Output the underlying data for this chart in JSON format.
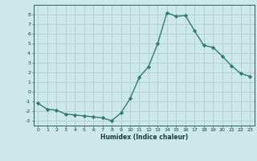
{
  "x": [
    0,
    1,
    2,
    3,
    4,
    5,
    6,
    7,
    8,
    9,
    10,
    11,
    12,
    13,
    14,
    15,
    16,
    17,
    18,
    19,
    20,
    21,
    22,
    23
  ],
  "y": [
    -1.2,
    -1.8,
    -1.9,
    -2.3,
    -2.4,
    -2.5,
    -2.6,
    -2.7,
    -3.0,
    -2.2,
    -0.7,
    1.5,
    2.6,
    5.0,
    8.2,
    7.8,
    7.9,
    6.3,
    4.8,
    4.6,
    3.7,
    2.7,
    1.9,
    1.6
  ],
  "line_color": "#2e7d6e",
  "marker": "D",
  "marker_size": 2.2,
  "bg_color": "#cce8e8",
  "grid_color": "#b0cccc",
  "xlabel": "Humidex (Indice chaleur)",
  "xlim": [
    -0.5,
    23.5
  ],
  "ylim": [
    -3.5,
    9.0
  ],
  "yticks": [
    -3,
    -2,
    -1,
    0,
    1,
    2,
    3,
    4,
    5,
    6,
    7,
    8
  ],
  "xtick_labels": [
    "0",
    "1",
    "2",
    "3",
    "4",
    "5",
    "6",
    "7",
    "8",
    "9",
    "10",
    "11",
    "12",
    "13",
    "14",
    "15",
    "16",
    "17",
    "18",
    "19",
    "20",
    "21",
    "22",
    "23"
  ],
  "tick_color": "#2e5c5c",
  "label_color": "#1a3a3a"
}
